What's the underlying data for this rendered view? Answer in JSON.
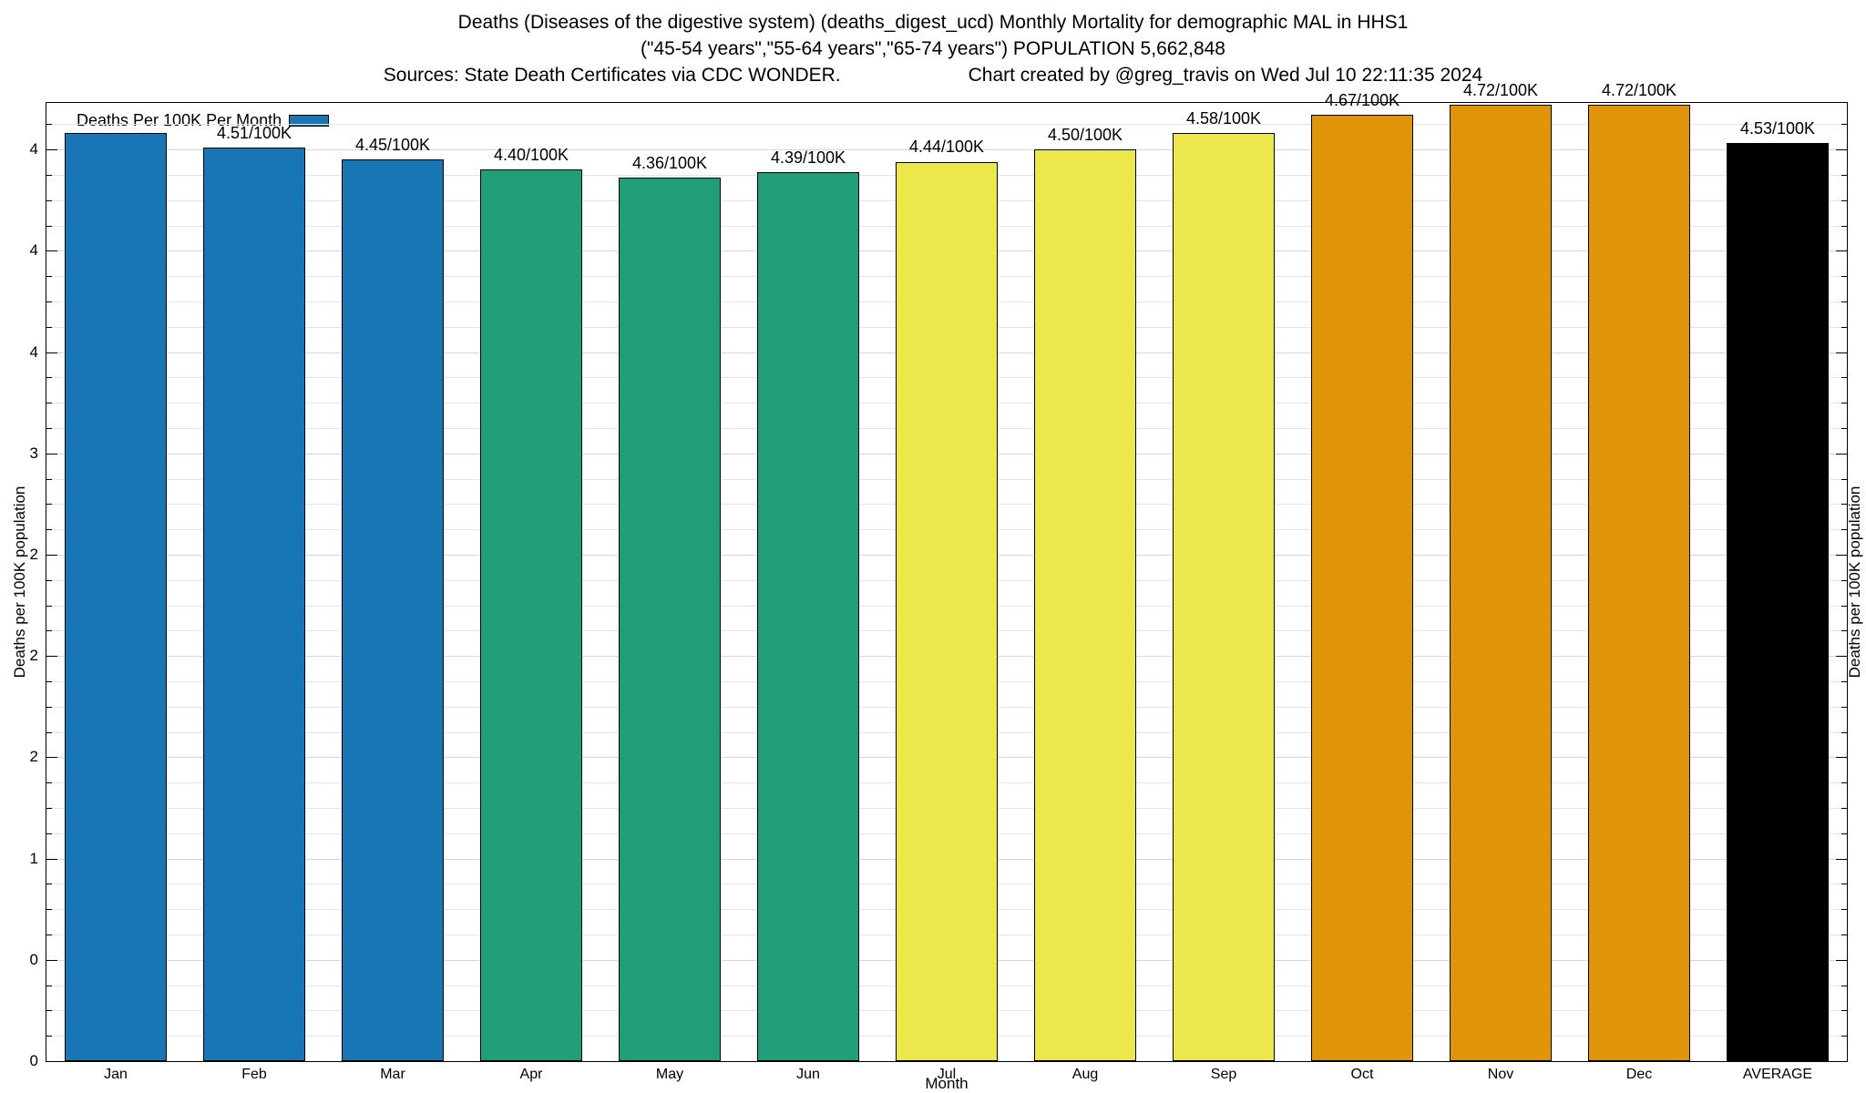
{
  "title": {
    "line1": "Deaths (Diseases of the digestive system) (deaths_digest_ucd) Monthly Mortality for demographic MAL in HHS1",
    "line2": "(\"45-54 years\",\"55-64 years\",\"65-74 years\") POPULATION 5,662,848",
    "line3_sources": "Sources: State Death Certificates via CDC WONDER.",
    "line3_credit": "Chart created by @greg_travis on Wed Jul 10 22:11:35 2024"
  },
  "legend": {
    "label": "Deaths Per 100K Per Month",
    "swatch_color": "#1976b4"
  },
  "chart_data": {
    "type": "bar",
    "title": "Deaths (Diseases of the digestive system) (deaths_digest_ucd) Monthly Mortality for demographic MAL in HHS1",
    "subtitle": "(\"45-54 years\",\"55-64 years\",\"65-74 years\") POPULATION 5,662,848",
    "source_note": "Sources: State Death Certificates via CDC WONDER.",
    "credit_note": "Chart created by @greg_travis on Wed Jul 10 22:11:35 2024",
    "xlabel": "Month",
    "ylabel": "Deaths per 100K population",
    "ylim": [
      0,
      4.73
    ],
    "grid": true,
    "legend_position": "top-left",
    "minor_step": 0.125,
    "categories": [
      "Jan",
      "Feb",
      "Mar",
      "Apr",
      "May",
      "Jun",
      "Jul",
      "Aug",
      "Sep",
      "Oct",
      "Nov",
      "Dec",
      "AVERAGE"
    ],
    "values": [
      4.58,
      4.51,
      4.45,
      4.4,
      4.36,
      4.39,
      4.44,
      4.5,
      4.58,
      4.67,
      4.72,
      4.72,
      4.53
    ],
    "bar_labels": [
      "",
      "4.51/100K",
      "4.45/100K",
      "4.40/100K",
      "4.36/100K",
      "4.39/100K",
      "4.44/100K",
      "4.50/100K",
      "4.58/100K",
      "4.67/100K",
      "4.72/100K",
      "4.72/100K",
      "4.53/100K"
    ],
    "bar_colors": [
      "#1976b4",
      "#1976b4",
      "#1976b4",
      "#1f9e77",
      "#1f9e77",
      "#1f9e77",
      "#ece74a",
      "#ece74a",
      "#ece74a",
      "#e09408",
      "#e09408",
      "#e09408",
      "#000000"
    ],
    "y_ticks": [
      {
        "value": 0,
        "label": "0"
      },
      {
        "value": 0.5,
        "label": "0"
      },
      {
        "value": 1,
        "label": "1"
      },
      {
        "value": 1.5,
        "label": "2"
      },
      {
        "value": 2,
        "label": "2"
      },
      {
        "value": 2.5,
        "label": "2"
      },
      {
        "value": 3,
        "label": "3"
      },
      {
        "value": 3.5,
        "label": "4"
      },
      {
        "value": 4,
        "label": "4"
      },
      {
        "value": 4.5,
        "label": "4"
      }
    ]
  }
}
